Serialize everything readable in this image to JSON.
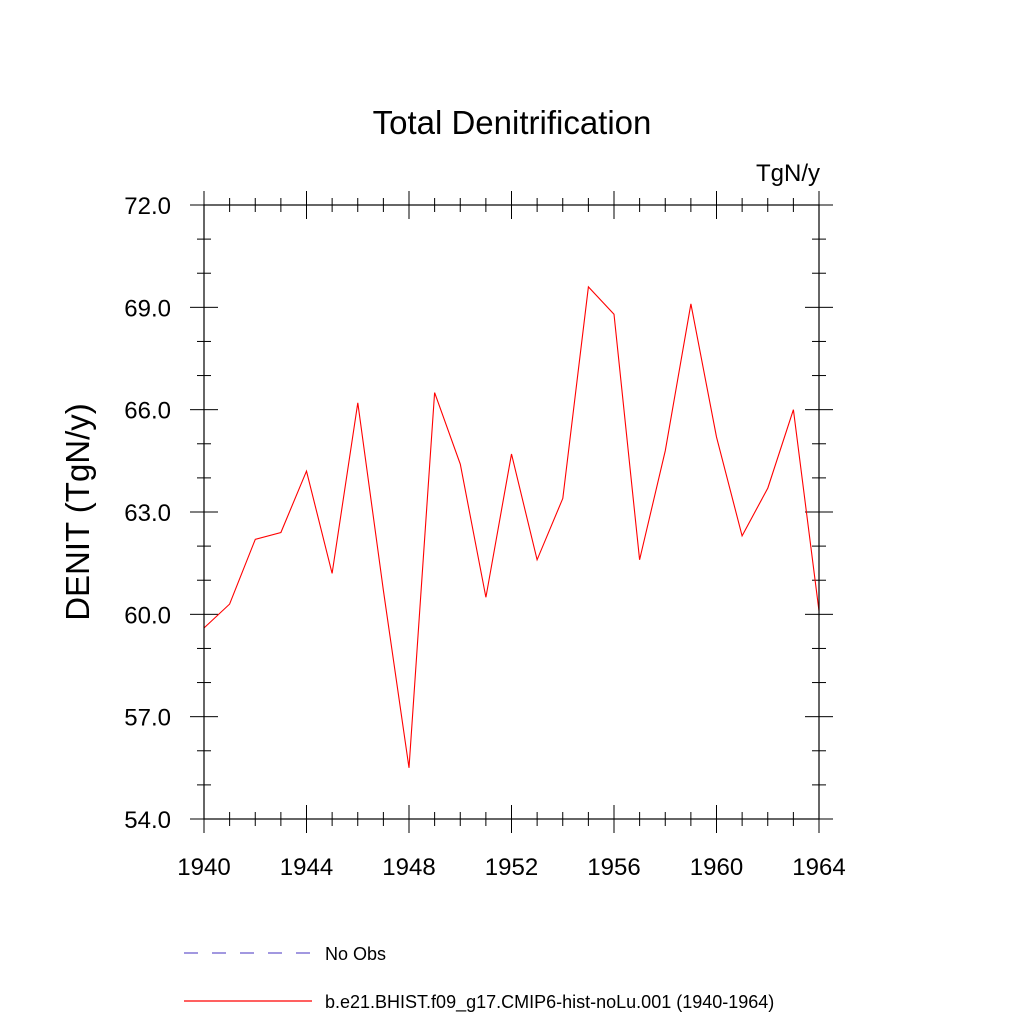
{
  "chart_data": {
    "type": "line",
    "title": "Total Denitrification",
    "units_label": "TgN/y",
    "ylabel": "DENIT  (TgN/y)",
    "xlabel": "",
    "xlim": [
      1940,
      1964
    ],
    "ylim": [
      54.0,
      72.0
    ],
    "x_ticks": [
      1940,
      1944,
      1948,
      1952,
      1956,
      1960,
      1964
    ],
    "y_ticks": [
      "54.0",
      "57.0",
      "60.0",
      "63.0",
      "66.0",
      "69.0",
      "72.0"
    ],
    "grid": false,
    "series": [
      {
        "name": "b.e21.BHIST.f09_g17.CMIP6-hist-noLu.001 (1940-1964)",
        "color": "#ff0000",
        "x": [
          1940,
          1941,
          1942,
          1943,
          1944,
          1945,
          1946,
          1947,
          1948,
          1949,
          1950,
          1951,
          1952,
          1953,
          1954,
          1955,
          1956,
          1957,
          1958,
          1959,
          1960,
          1961,
          1962,
          1963,
          1964
        ],
        "values": [
          59.6,
          60.3,
          62.2,
          62.4,
          64.2,
          61.2,
          66.2,
          60.7,
          55.5,
          66.5,
          64.4,
          60.5,
          64.7,
          61.6,
          63.4,
          69.6,
          68.8,
          61.6,
          64.8,
          69.1,
          65.2,
          62.3,
          63.7,
          66.0,
          60.1
        ]
      }
    ]
  },
  "legend": {
    "position": "bottom",
    "items": [
      {
        "label": "No Obs",
        "color": "#6a5acd",
        "style": "dashed"
      },
      {
        "label": "b.e21.BHIST.f09_g17.CMIP6-hist-noLu.001 (1940-1964)",
        "color": "#ff0000",
        "style": "solid"
      }
    ]
  }
}
